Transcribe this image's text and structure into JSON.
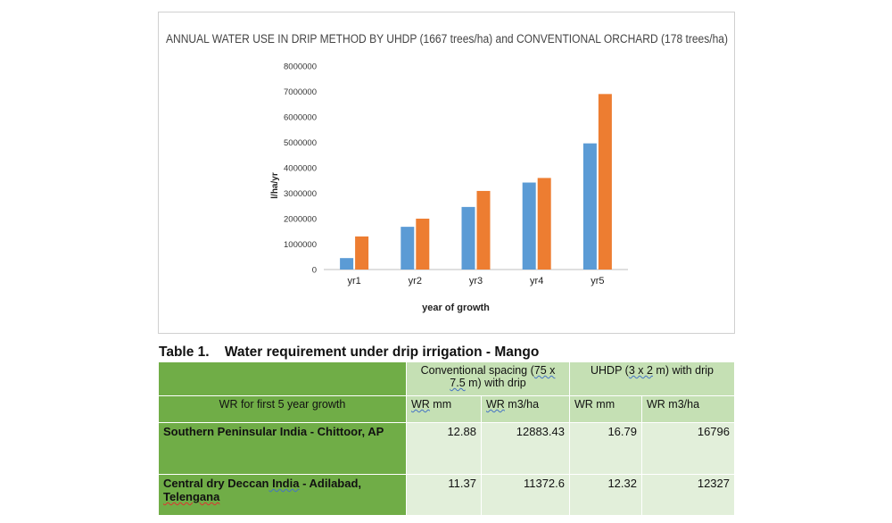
{
  "chart_data": {
    "type": "bar",
    "title": "ANNUAL WATER USE IN DRIP METHOD BY UHDP (1667 trees/ha) and CONVENTIONAL ORCHARD (178 trees/ha)",
    "xlabel": "year of growth",
    "ylabel": "l/ha/yr",
    "categories": [
      "yr1",
      "yr2",
      "yr3",
      "yr4",
      "yr5"
    ],
    "series": [
      {
        "color": "#5b9bd5",
        "values": [
          450000,
          1680000,
          2460000,
          3420000,
          4960000
        ]
      },
      {
        "color": "#ed7d31",
        "values": [
          1300000,
          2000000,
          3090000,
          3600000,
          6900000
        ]
      }
    ],
    "ylim": [
      0,
      8000000
    ],
    "yticks": [
      0,
      1000000,
      2000000,
      3000000,
      4000000,
      5000000,
      6000000,
      7000000,
      8000000
    ],
    "grid": false,
    "legend": "none"
  },
  "table": {
    "caption_num": "Table 1.",
    "caption_text": "Water requirement under drip irrigation - Mango",
    "group_conventional_a": "Conventional spacing (",
    "group_conventional_b": "75 x",
    "group_conventional_c": "7.5",
    "group_conventional_d": " m) with drip",
    "group_uhdp_a": "UHDP  (",
    "group_uhdp_b": "3 x 2",
    "group_uhdp_c": " m) with drip",
    "row_header": "WR for first 5 year growth",
    "col_wr_mm_1a": "WR",
    "col_wr_mm_1b": " mm",
    "col_wr_m3_1a": "WR",
    "col_wr_m3_1b": " m3/ha",
    "col_wr_mm_2": "WR mm",
    "col_wr_m3_2": "WR m3/ha",
    "row1_label_a": "Southern Peninsular India",
    "row1_label_b": " - Chittoor, AP",
    "row1_values": [
      "12.88",
      "12883.43",
      "16.79",
      "16796"
    ],
    "row2_label_a": "Central dry Deccan",
    "row2_label_b": " India",
    "row2_label_c": " - Adilabad,",
    "row2_label_d": "Telengana",
    "row2_values": [
      "11.37",
      "11372.6",
      "12.32",
      "12327"
    ]
  }
}
